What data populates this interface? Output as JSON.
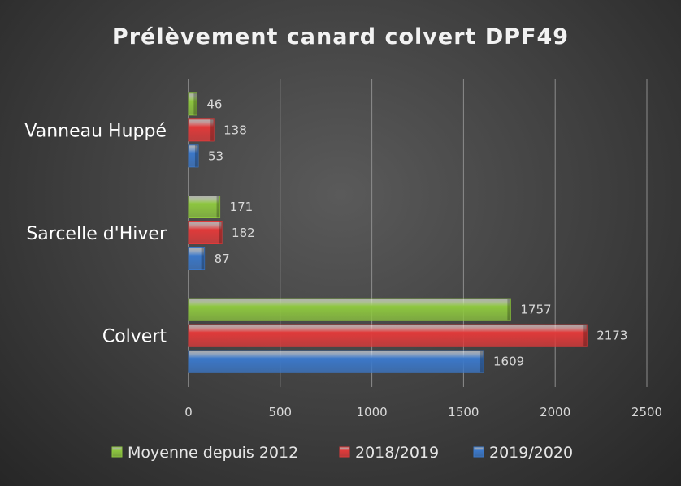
{
  "chart_data": {
    "type": "bar",
    "orientation": "horizontal",
    "title": "Prélèvement canard colvert DPF49",
    "categories": [
      "Colvert",
      "Sarcelle d'Hiver",
      "Vanneau Huppé"
    ],
    "series": [
      {
        "name": "Moyenne depuis 2012",
        "color": "#8dc63f",
        "values": [
          1757,
          171,
          46
        ]
      },
      {
        "name": "2018/2019",
        "color": "#e03a3a",
        "values": [
          2173,
          182,
          138
        ]
      },
      {
        "name": "2019/2020",
        "color": "#3b78c9",
        "values": [
          1609,
          87,
          53
        ]
      }
    ],
    "xlim": [
      0,
      2500
    ],
    "xticks": [
      "0",
      "500",
      "1000",
      "1500",
      "2000",
      "2500"
    ],
    "grid": true,
    "legend_position": "bottom",
    "data_labels": true
  }
}
